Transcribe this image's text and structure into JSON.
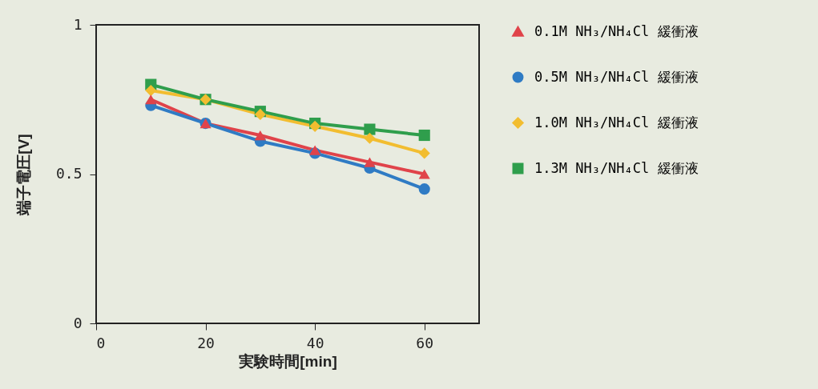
{
  "chart_data": {
    "type": "line",
    "xlabel": "実験時間[min]",
    "ylabel": "端子電圧[V]",
    "x": [
      10,
      20,
      30,
      40,
      50,
      60
    ],
    "series": [
      {
        "name": "0.1M NH₃/NH₄Cl 緩衝液",
        "color": "#e0434a",
        "marker": "triangle",
        "values": [
          0.75,
          0.67,
          0.63,
          0.58,
          0.54,
          0.5
        ]
      },
      {
        "name": "0.5M NH₃/NH₄Cl 緩衝液",
        "color": "#2f7bc4",
        "marker": "circle",
        "values": [
          0.73,
          0.67,
          0.61,
          0.57,
          0.52,
          0.45
        ]
      },
      {
        "name": "1.0M NH₃/NH₄Cl 緩衝液",
        "color": "#f2bd30",
        "marker": "diamond",
        "values": [
          0.78,
          0.75,
          0.7,
          0.66,
          0.62,
          0.57
        ]
      },
      {
        "name": "1.3M NH₃/NH₄Cl 緩衝液",
        "color": "#2f9e4c",
        "marker": "square",
        "values": [
          0.8,
          0.75,
          0.71,
          0.67,
          0.65,
          0.63
        ]
      }
    ],
    "xlim": [
      0,
      70
    ],
    "xticks": [
      0,
      20,
      40,
      60
    ],
    "ylim": [
      0,
      1
    ],
    "yticks": [
      0,
      0.5,
      1
    ],
    "legend": "right",
    "grid": false,
    "line_style": "solid"
  }
}
